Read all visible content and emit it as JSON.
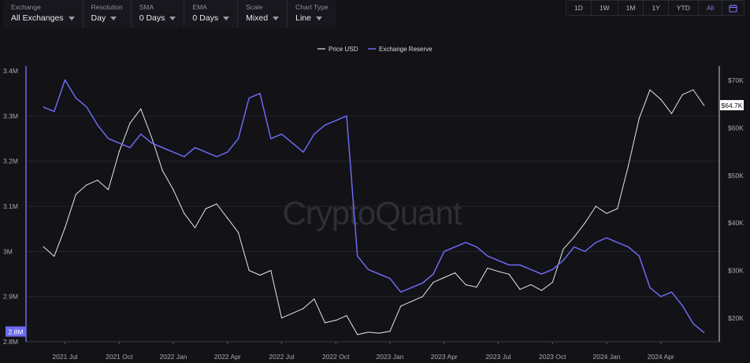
{
  "controls": [
    {
      "label": "Exchange",
      "value": "All Exchanges"
    },
    {
      "label": "Resolution",
      "value": "Day"
    },
    {
      "label": "SMA",
      "value": "0 Days"
    },
    {
      "label": "EMA",
      "value": "0 Days"
    },
    {
      "label": "Scale",
      "value": "Mixed"
    },
    {
      "label": "Chart Type",
      "value": "Line"
    }
  ],
  "ranges": [
    "1D",
    "1W",
    "1M",
    "1Y",
    "YTD",
    "All"
  ],
  "active_range": "All",
  "watermark": "CryptoQuant",
  "colors": {
    "background": "#121217",
    "price": "#e6e6ea",
    "reserve": "#6b6bf0",
    "accent": "#7b7bff"
  },
  "chart_data": {
    "type": "line",
    "legend_position": "top-center",
    "grid": true,
    "x_ticks": [
      "2021 Jul",
      "2021 Oct",
      "2022 Jan",
      "2022 Apr",
      "2022 Jul",
      "2022 Oct",
      "2023 Jan",
      "2023 Apr",
      "2023 Jul",
      "2023 Oct",
      "2024 Jan",
      "2024 Apr"
    ],
    "left_axis": {
      "ticks": [
        "3.4M",
        "3.3M",
        "3.2M",
        "3.1M",
        "3M",
        "2.9M",
        "2.8M"
      ],
      "ylim": [
        2800000,
        3400000
      ],
      "current_label": "2.8M"
    },
    "right_axis": {
      "ticks": [
        "$70K",
        "$60K",
        "$50K",
        "$40K",
        "$30K",
        "$20K"
      ],
      "ylim": [
        15000,
        72000
      ],
      "current_label": "$64.7K"
    },
    "series": [
      {
        "name": "Price USD",
        "axis": "right",
        "x": [
          2021.4,
          2021.45,
          2021.5,
          2021.55,
          2021.6,
          2021.65,
          2021.7,
          2021.75,
          2021.8,
          2021.85,
          2021.9,
          2021.95,
          2022.0,
          2022.05,
          2022.1,
          2022.15,
          2022.2,
          2022.25,
          2022.3,
          2022.35,
          2022.4,
          2022.45,
          2022.5,
          2022.55,
          2022.6,
          2022.65,
          2022.7,
          2022.75,
          2022.8,
          2022.85,
          2022.9,
          2022.95,
          2023.0,
          2023.05,
          2023.1,
          2023.15,
          2023.2,
          2023.25,
          2023.3,
          2023.35,
          2023.4,
          2023.45,
          2023.5,
          2023.55,
          2023.6,
          2023.65,
          2023.7,
          2023.75,
          2023.8,
          2023.85,
          2023.9,
          2023.95,
          2024.0,
          2024.05,
          2024.1,
          2024.15,
          2024.2,
          2024.25,
          2024.3,
          2024.35,
          2024.4,
          2024.45
        ],
        "values": [
          35000,
          33000,
          39000,
          46000,
          48000,
          49000,
          47000,
          55000,
          61000,
          64000,
          58000,
          51000,
          47000,
          42000,
          39000,
          43000,
          44000,
          41000,
          38000,
          30000,
          29000,
          30000,
          20000,
          21000,
          22000,
          24000,
          19000,
          19500,
          20500,
          16500,
          17000,
          16800,
          17200,
          22500,
          23500,
          24500,
          27500,
          28500,
          29500,
          27000,
          26500,
          30500,
          29800,
          29200,
          26000,
          27000,
          25800,
          27500,
          34500,
          37000,
          40000,
          43500,
          42000,
          43000,
          52000,
          62000,
          68000,
          66000,
          63000,
          67000,
          68000,
          64700
        ]
      },
      {
        "name": "Exchange Reserve",
        "axis": "left",
        "x": [
          2021.4,
          2021.45,
          2021.5,
          2021.55,
          2021.6,
          2021.65,
          2021.7,
          2021.75,
          2021.8,
          2021.85,
          2021.9,
          2021.95,
          2022.0,
          2022.05,
          2022.1,
          2022.15,
          2022.2,
          2022.25,
          2022.3,
          2022.35,
          2022.4,
          2022.45,
          2022.5,
          2022.55,
          2022.6,
          2022.65,
          2022.7,
          2022.75,
          2022.8,
          2022.85,
          2022.9,
          2022.95,
          2023.0,
          2023.05,
          2023.1,
          2023.15,
          2023.2,
          2023.25,
          2023.3,
          2023.35,
          2023.4,
          2023.45,
          2023.5,
          2023.55,
          2023.6,
          2023.65,
          2023.7,
          2023.75,
          2023.8,
          2023.85,
          2023.9,
          2023.95,
          2024.0,
          2024.05,
          2024.1,
          2024.15,
          2024.2,
          2024.25,
          2024.3,
          2024.35,
          2024.4,
          2024.45
        ],
        "values": [
          3320000,
          3310000,
          3380000,
          3340000,
          3320000,
          3280000,
          3250000,
          3240000,
          3230000,
          3260000,
          3240000,
          3230000,
          3220000,
          3210000,
          3230000,
          3220000,
          3210000,
          3220000,
          3250000,
          3340000,
          3350000,
          3250000,
          3260000,
          3240000,
          3220000,
          3260000,
          3280000,
          3290000,
          3300000,
          2990000,
          2960000,
          2950000,
          2940000,
          2910000,
          2920000,
          2930000,
          2950000,
          3000000,
          3010000,
          3020000,
          3010000,
          2990000,
          2980000,
          2970000,
          2970000,
          2960000,
          2950000,
          2960000,
          2980000,
          3010000,
          3000000,
          3020000,
          3030000,
          3020000,
          3010000,
          2990000,
          2920000,
          2900000,
          2910000,
          2880000,
          2840000,
          2820000
        ]
      }
    ]
  }
}
